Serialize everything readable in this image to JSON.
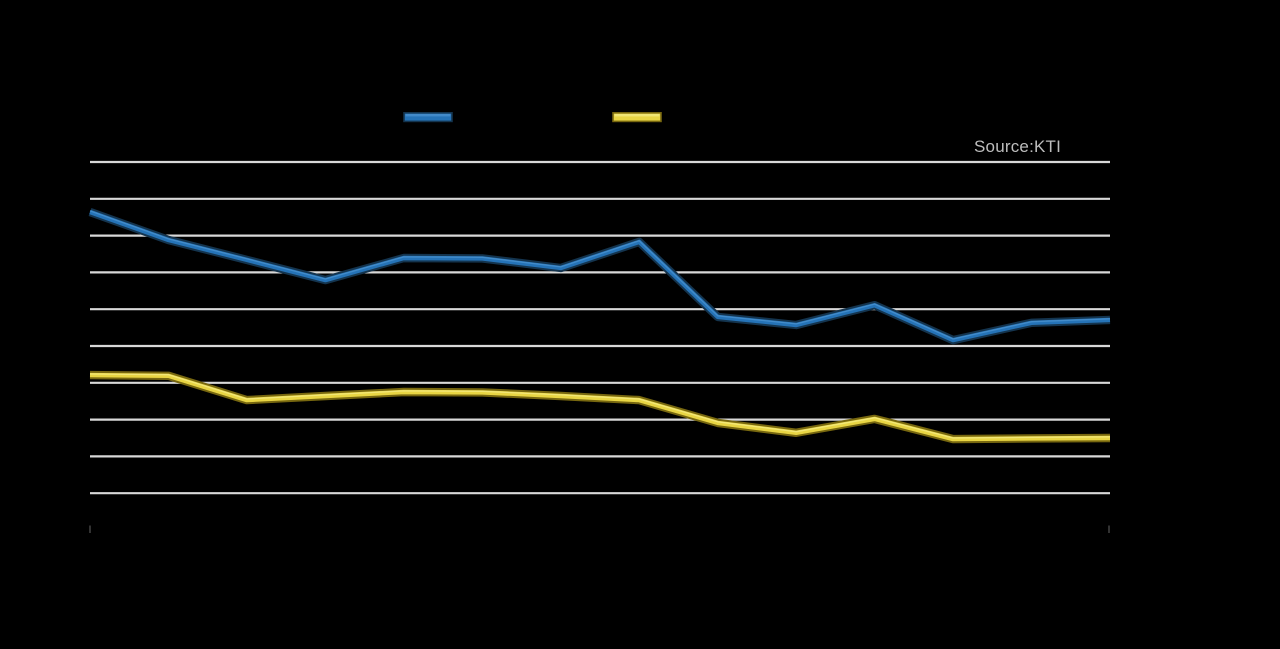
{
  "meta": {
    "description": "Two-series line chart on a black background. Title, axis tick labels and legend labels are not visible (rendered black-on-black); visible elements are horizontal gridlines, two beveled data lines, two legend swatches and a source note."
  },
  "source_note": {
    "text": "Source:KTI"
  },
  "colors": {
    "background": "#000000",
    "gridline": "#D8D8D8",
    "axis_tick": "#3F3F3F",
    "source_text": "#BDBDBD"
  },
  "legend": {
    "position": "top-center",
    "items": [
      {
        "name": "blue-series",
        "label": "",
        "color": "#2573B7",
        "edge_color": "#14344E",
        "highlight_color": "#4E94D0"
      },
      {
        "name": "yellow-series",
        "label": "",
        "color": "#E8D544",
        "edge_color": "#77670F",
        "highlight_color": "#F5EC8A"
      }
    ]
  },
  "chart_data": {
    "type": "line",
    "title": "",
    "xlabel": "",
    "ylabel": "",
    "x": [
      1,
      2,
      3,
      4,
      5,
      6,
      7,
      8,
      9,
      10,
      11,
      12,
      13,
      14
    ],
    "ylim": [
      0,
      10
    ],
    "grid": {
      "orientation": "horizontal",
      "from": 1,
      "to": 10,
      "step": 1
    },
    "legend_position": "top-center",
    "series": [
      {
        "name": "blue-series",
        "color": "#2573B7",
        "edge_color": "#14344E",
        "highlight_color": "#4E94D0",
        "values": [
          8.64,
          7.88,
          7.34,
          6.79,
          7.39,
          7.38,
          7.12,
          7.83,
          5.79,
          5.57,
          6.11,
          5.16,
          5.63,
          5.71
        ]
      },
      {
        "name": "yellow-series",
        "color": "#E8D544",
        "edge_color": "#77670F",
        "highlight_color": "#F5EC8A",
        "values": [
          4.21,
          4.19,
          3.53,
          3.64,
          3.75,
          3.74,
          3.64,
          3.53,
          2.91,
          2.64,
          3.02,
          2.47,
          2.49,
          2.5
        ]
      }
    ],
    "note": "Values estimated in unlabeled gridline units (baseline = 0, each gridline = 1, 10 gridlines visible); axis labels are not visible in the source image."
  }
}
